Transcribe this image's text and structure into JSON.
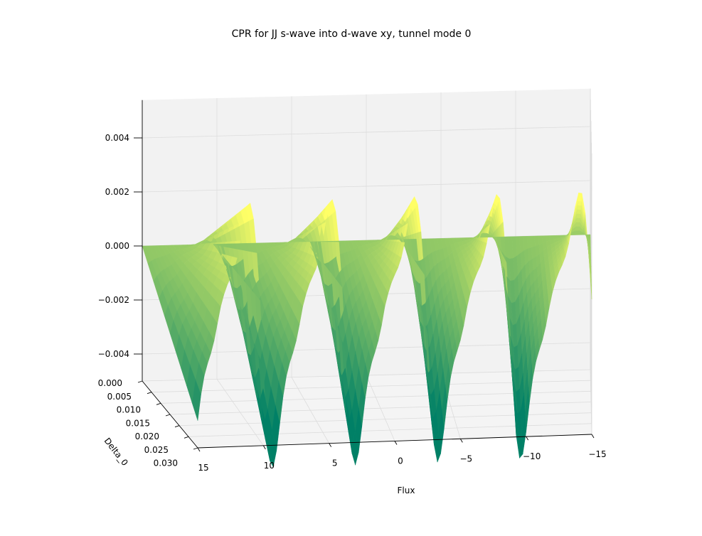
{
  "chart_data": {
    "type": "surface",
    "title": "CPR for JJ s-wave into d-wave xy, tunnel mode 0",
    "xlabel": "Flux",
    "ylabel": "Delta_0",
    "zlabel": "",
    "x_ticks": [
      "15",
      "10",
      "5",
      "0",
      "−5",
      "−10",
      "−15"
    ],
    "y_ticks": [
      "0.000",
      "0.005",
      "0.010",
      "0.015",
      "0.020",
      "0.025",
      "0.030"
    ],
    "z_ticks": [
      "0.004",
      "0.002",
      "0.000",
      "−0.002",
      "−0.004"
    ],
    "xlim": [
      -15,
      15
    ],
    "ylim": [
      0,
      0.03
    ],
    "zlim": [
      -0.005,
      0.005
    ],
    "grid": true,
    "colormap": "summer",
    "colors": {
      "low": "#008066",
      "high": "#ffff66"
    },
    "surface_description_series": [
      {
        "name": "peak_flux_values",
        "values": [
          12.6,
          6.3,
          0.0,
          -6.3
        ]
      },
      {
        "name": "trough_flux_values",
        "values": [
          12.6,
          6.3,
          0.0,
          -6.3
        ]
      }
    ],
    "z_at_delta_max": {
      "max": 0.0032,
      "min": -0.0045
    }
  }
}
